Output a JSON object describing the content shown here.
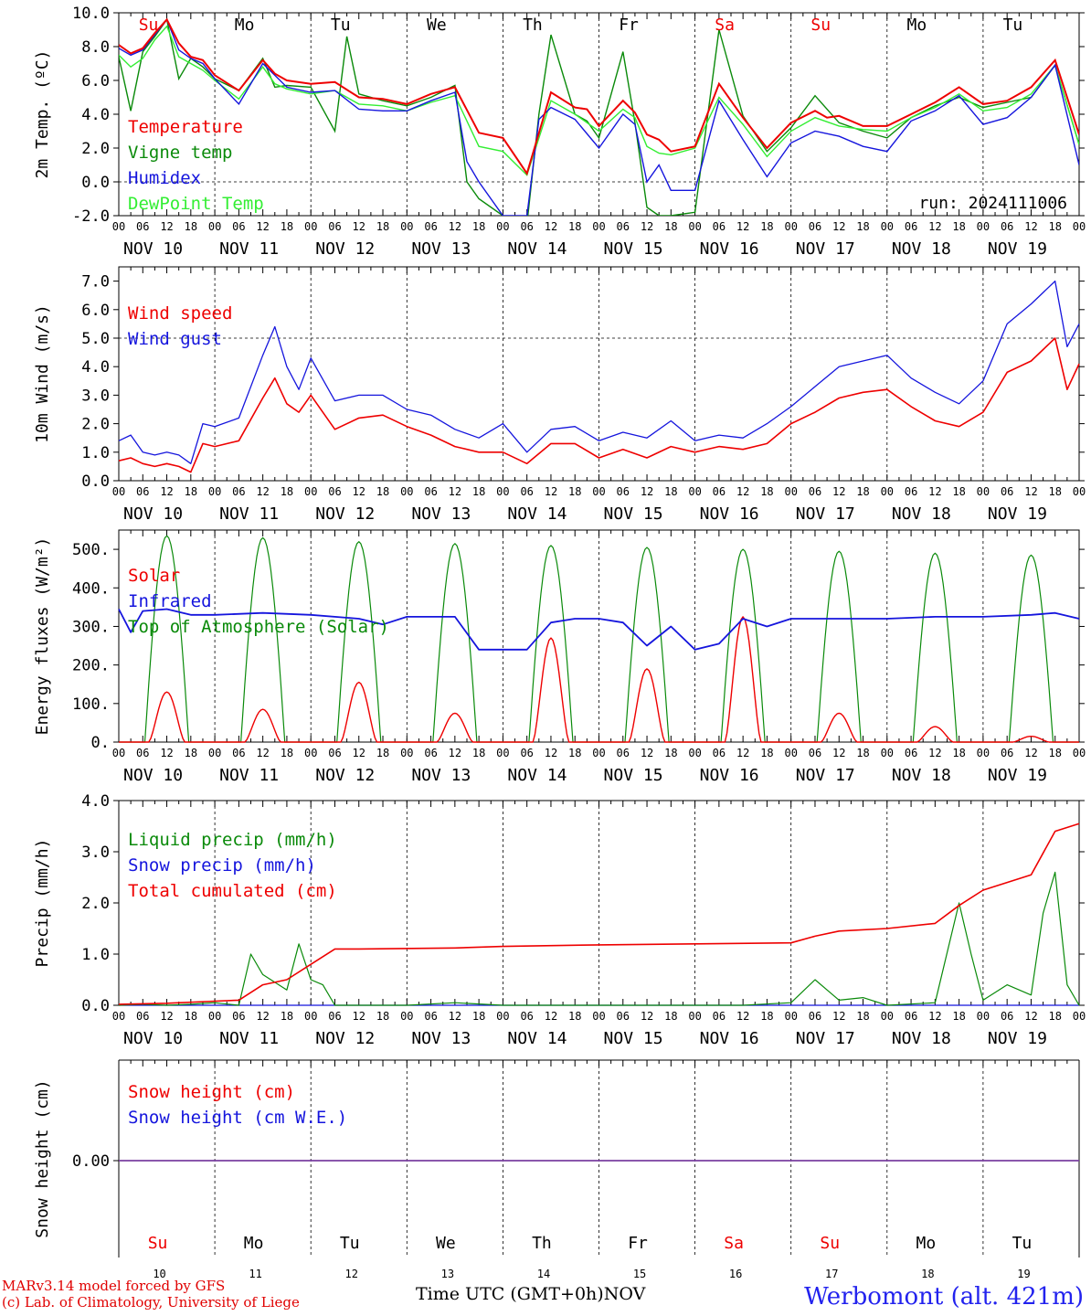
{
  "run_label": "run: 2024111006",
  "credits": {
    "line1": "MARv3.14 model forced by GFS",
    "line2": "(c) Lab. of Climatology, University of Liege"
  },
  "station": "Werbomont (alt. 421m)",
  "xaxis_title": "Time UTC (GMT+0h)",
  "xaxis_month": "NOV",
  "colors": {
    "red": "#ee0000",
    "green": "#0a8a0a",
    "blue": "#1515dd",
    "lightgreen": "#33ee33",
    "purple": "#7a3fa0"
  },
  "day_names": [
    "Su",
    "Mo",
    "Tu",
    "We",
    "Th",
    "Fr",
    "Sa",
    "Su",
    "Mo",
    "Tu"
  ],
  "day_name_colors": [
    "red",
    "black",
    "black",
    "black",
    "black",
    "black",
    "red",
    "red",
    "black",
    "black"
  ],
  "date_labels": [
    "NOV 10",
    "NOV 11",
    "NOV 12",
    "NOV 13",
    "NOV 14",
    "NOV 15",
    "NOV 16",
    "NOV 17",
    "NOV 18",
    "NOV 19"
  ],
  "day_numbers": [
    "10",
    "11",
    "12",
    "13",
    "14",
    "15",
    "16",
    "17",
    "18",
    "19"
  ],
  "hour_ticks": [
    "00",
    "06",
    "12",
    "18"
  ],
  "chart_data": [
    {
      "type": "line",
      "ylabel": "2m Temp. (ºC)",
      "ylim": [
        -2,
        10
      ],
      "yticks": [
        "-2.0",
        "0.0",
        "2.0",
        "4.0",
        "6.0",
        "8.0",
        "10.0"
      ],
      "x_unit": "hours since NOV 10 00 UTC",
      "series": [
        {
          "name": "Temperature",
          "color": "red",
          "x": [
            0,
            3,
            6,
            9,
            12,
            15,
            18,
            21,
            24,
            30,
            36,
            39,
            42,
            48,
            54,
            60,
            66,
            72,
            78,
            84,
            90,
            96,
            102,
            108,
            114,
            117,
            120,
            126,
            129,
            132,
            135,
            138,
            144,
            150,
            156,
            162,
            168,
            174,
            177,
            180,
            186,
            192,
            198,
            204,
            210,
            216,
            222,
            228,
            234,
            240
          ],
          "y": [
            8.1,
            7.6,
            7.9,
            8.8,
            9.6,
            8.2,
            7.4,
            7.2,
            6.3,
            5.4,
            7.2,
            6.4,
            6.0,
            5.8,
            5.9,
            5.0,
            4.9,
            4.6,
            5.2,
            5.6,
            2.9,
            2.6,
            0.5,
            5.3,
            4.4,
            4.3,
            3.3,
            4.8,
            4.1,
            2.8,
            2.5,
            1.8,
            2.1,
            5.8,
            3.8,
            2.0,
            3.5,
            4.2,
            3.8,
            3.9,
            3.3,
            3.3,
            4.0,
            4.7,
            5.6,
            4.6,
            4.8,
            5.6,
            7.2,
            2.8
          ]
        },
        {
          "name": "Vigne temp",
          "color": "green",
          "x": [
            0,
            3,
            6,
            9,
            12,
            15,
            18,
            21,
            24,
            30,
            36,
            39,
            42,
            48,
            54,
            57,
            60,
            66,
            72,
            78,
            84,
            87,
            90,
            96,
            102,
            105,
            108,
            114,
            117,
            120,
            126,
            129,
            132,
            135,
            138,
            144,
            150,
            156,
            162,
            168,
            174,
            180,
            186,
            192,
            198,
            204,
            210,
            216,
            222,
            228,
            234,
            240
          ],
          "y": [
            7.4,
            4.2,
            7.7,
            8.6,
            9.6,
            6.1,
            7.3,
            6.8,
            6.1,
            5.4,
            7.3,
            5.6,
            5.7,
            5.6,
            3.0,
            8.6,
            5.2,
            4.8,
            4.5,
            5.0,
            5.7,
            0.0,
            -1.0,
            -2.0,
            -2.5,
            4.0,
            8.7,
            4.0,
            3.6,
            2.6,
            7.7,
            3.5,
            -1.5,
            -2.0,
            -2.0,
            -1.8,
            9.0,
            3.9,
            1.8,
            3.2,
            5.1,
            3.5,
            3.0,
            2.6,
            3.8,
            4.5,
            5.0,
            4.4,
            4.7,
            5.0,
            6.9,
            2.2
          ]
        },
        {
          "name": "Humidex",
          "color": "blue",
          "x": [
            0,
            3,
            6,
            9,
            12,
            15,
            18,
            21,
            24,
            30,
            36,
            39,
            42,
            48,
            54,
            60,
            66,
            72,
            78,
            84,
            87,
            90,
            96,
            102,
            105,
            108,
            114,
            120,
            126,
            129,
            132,
            135,
            138,
            144,
            150,
            156,
            162,
            168,
            174,
            180,
            186,
            192,
            198,
            204,
            210,
            216,
            222,
            228,
            234,
            240
          ],
          "y": [
            7.9,
            7.5,
            7.8,
            8.7,
            9.6,
            7.8,
            7.3,
            7.0,
            6.1,
            4.6,
            7.0,
            6.3,
            5.6,
            5.3,
            5.4,
            4.3,
            4.2,
            4.2,
            4.8,
            5.3,
            1.2,
            0.0,
            -2.0,
            -2.0,
            3.7,
            4.4,
            3.7,
            2.0,
            4.0,
            3.4,
            0.0,
            1.0,
            -0.5,
            -0.5,
            4.8,
            2.5,
            0.3,
            2.3,
            3.0,
            2.7,
            2.1,
            1.8,
            3.6,
            4.2,
            5.1,
            3.4,
            3.8,
            5.0,
            6.9,
            1.0
          ]
        },
        {
          "name": "DewPoint Temp",
          "color": "lightgreen",
          "x": [
            0,
            3,
            6,
            9,
            12,
            15,
            18,
            21,
            24,
            30,
            36,
            39,
            42,
            48,
            54,
            60,
            66,
            72,
            78,
            84,
            90,
            96,
            102,
            108,
            114,
            120,
            126,
            129,
            132,
            135,
            138,
            144,
            150,
            156,
            162,
            168,
            174,
            180,
            186,
            192,
            198,
            204,
            210,
            216,
            222,
            228,
            234,
            240
          ],
          "y": [
            7.5,
            6.8,
            7.3,
            8.4,
            9.2,
            7.4,
            7.0,
            6.6,
            6.0,
            4.9,
            6.8,
            5.8,
            5.5,
            5.2,
            5.4,
            4.6,
            4.5,
            4.2,
            4.7,
            5.1,
            2.1,
            1.8,
            0.4,
            4.8,
            4.0,
            3.0,
            4.3,
            3.8,
            2.1,
            1.7,
            1.6,
            2.0,
            5.0,
            3.4,
            1.5,
            3.0,
            3.8,
            3.3,
            3.1,
            3.0,
            3.8,
            4.4,
            5.2,
            4.2,
            4.4,
            5.2,
            6.9,
            2.2
          ]
        }
      ]
    },
    {
      "type": "line",
      "ylabel": "10m Wind (m/s)",
      "ylim": [
        0,
        7.5
      ],
      "yticks": [
        "0.0",
        "1.0",
        "2.0",
        "3.0",
        "4.0",
        "5.0",
        "6.0",
        "7.0"
      ],
      "ref_line": 5.0,
      "series": [
        {
          "name": "Wind speed",
          "color": "red",
          "x": [
            0,
            3,
            6,
            9,
            12,
            15,
            18,
            21,
            24,
            30,
            36,
            39,
            42,
            45,
            48,
            54,
            60,
            66,
            72,
            78,
            84,
            90,
            96,
            102,
            108,
            114,
            120,
            126,
            132,
            138,
            144,
            150,
            156,
            162,
            168,
            174,
            180,
            186,
            192,
            198,
            204,
            210,
            216,
            222,
            228,
            234,
            237,
            240
          ],
          "y": [
            0.7,
            0.8,
            0.6,
            0.5,
            0.6,
            0.5,
            0.3,
            1.3,
            1.2,
            1.4,
            2.9,
            3.6,
            2.7,
            2.4,
            3.0,
            1.8,
            2.2,
            2.3,
            1.9,
            1.6,
            1.2,
            1.0,
            1.0,
            0.6,
            1.3,
            1.3,
            0.8,
            1.1,
            0.8,
            1.2,
            1.0,
            1.2,
            1.1,
            1.3,
            2.0,
            2.4,
            2.9,
            3.1,
            3.2,
            2.6,
            2.1,
            1.9,
            2.4,
            3.8,
            4.2,
            5.0,
            3.2,
            4.1
          ]
        },
        {
          "name": "Wind gust",
          "color": "blue",
          "x": [
            0,
            3,
            6,
            9,
            12,
            15,
            18,
            21,
            24,
            30,
            36,
            39,
            42,
            45,
            48,
            54,
            60,
            66,
            72,
            78,
            84,
            90,
            96,
            102,
            108,
            114,
            120,
            126,
            132,
            138,
            144,
            150,
            156,
            162,
            168,
            174,
            180,
            186,
            192,
            198,
            204,
            210,
            216,
            222,
            228,
            234,
            237,
            240
          ],
          "y": [
            1.4,
            1.6,
            1.0,
            0.9,
            1.0,
            0.9,
            0.6,
            2.0,
            1.9,
            2.2,
            4.4,
            5.4,
            4.0,
            3.2,
            4.3,
            2.8,
            3.0,
            3.0,
            2.5,
            2.3,
            1.8,
            1.5,
            2.0,
            1.0,
            1.8,
            1.9,
            1.4,
            1.7,
            1.5,
            2.1,
            1.4,
            1.6,
            1.5,
            2.0,
            2.6,
            3.3,
            4.0,
            4.2,
            4.4,
            3.6,
            3.1,
            2.7,
            3.5,
            5.5,
            6.2,
            7.0,
            4.7,
            5.5
          ]
        }
      ]
    },
    {
      "type": "line",
      "ylabel": "Energy fluxes (W/m²)",
      "ylim": [
        0,
        550
      ],
      "yticks": [
        "0.",
        "100.",
        "200.",
        "300.",
        "400.",
        "500."
      ],
      "series": [
        {
          "name": "Solar",
          "color": "red",
          "peaks": [
            130,
            85,
            155,
            75,
            270,
            190,
            325,
            75,
            40,
            15
          ]
        },
        {
          "name": "Infrared",
          "color": "blue",
          "x": [
            0,
            3,
            6,
            12,
            18,
            24,
            36,
            48,
            60,
            66,
            72,
            84,
            90,
            96,
            102,
            108,
            114,
            120,
            126,
            132,
            138,
            144,
            150,
            156,
            162,
            168,
            180,
            192,
            204,
            216,
            228,
            234,
            240
          ],
          "y": [
            345,
            285,
            340,
            345,
            330,
            330,
            335,
            330,
            320,
            305,
            325,
            325,
            240,
            240,
            240,
            310,
            320,
            320,
            310,
            250,
            300,
            240,
            255,
            320,
            300,
            320,
            320,
            320,
            325,
            325,
            330,
            335,
            320
          ]
        },
        {
          "name": "Top of Atmosphere (Solar)",
          "color": "green",
          "peaks": [
            535,
            530,
            520,
            515,
            510,
            505,
            500,
            495,
            490,
            485
          ]
        }
      ]
    },
    {
      "type": "line",
      "ylabel": "Precip (mm/h)",
      "ylim": [
        0,
        4.0
      ],
      "yticks": [
        "0.0",
        "1.0",
        "2.0",
        "3.0",
        "4.0"
      ],
      "series": [
        {
          "name": "Liquid precip (mm/h)",
          "color": "green",
          "x": [
            0,
            6,
            12,
            18,
            24,
            30,
            33,
            36,
            42,
            45,
            48,
            51,
            54,
            60,
            66,
            72,
            84,
            96,
            108,
            120,
            132,
            144,
            156,
            168,
            174,
            177,
            180,
            186,
            192,
            204,
            210,
            213,
            216,
            222,
            228,
            231,
            234,
            237,
            240
          ],
          "y": [
            0,
            0.02,
            0,
            0.02,
            0.05,
            0,
            1.0,
            0.6,
            0.3,
            1.2,
            0.5,
            0.4,
            0,
            0,
            0,
            0,
            0.05,
            0,
            0,
            0,
            0,
            0,
            0,
            0.05,
            0.5,
            0.3,
            0.1,
            0.15,
            0,
            0.05,
            2.0,
            1.0,
            0.1,
            0.4,
            0.2,
            1.8,
            2.6,
            0.4,
            0
          ]
        },
        {
          "name": "Snow precip (mm/h)",
          "color": "blue",
          "x": [
            0,
            240
          ],
          "y": [
            0,
            0
          ]
        },
        {
          "name": "Total cumulated (cm)",
          "color": "red",
          "x": [
            0,
            12,
            24,
            30,
            36,
            42,
            48,
            54,
            60,
            84,
            96,
            120,
            144,
            168,
            174,
            180,
            192,
            204,
            210,
            216,
            222,
            228,
            234,
            240
          ],
          "y": [
            0.02,
            0.04,
            0.08,
            0.1,
            0.4,
            0.5,
            0.8,
            1.1,
            1.1,
            1.12,
            1.15,
            1.18,
            1.2,
            1.22,
            1.35,
            1.45,
            1.5,
            1.6,
            1.95,
            2.25,
            2.4,
            2.55,
            3.4,
            3.55
          ]
        }
      ]
    },
    {
      "type": "line",
      "ylabel": "Snow height (cm)",
      "yticks": [
        "0.00"
      ],
      "series": [
        {
          "name": "Snow height (cm)",
          "color": "red",
          "x": [
            0,
            240
          ],
          "y": [
            0,
            0
          ]
        },
        {
          "name": "Snow height (cm W.E.)",
          "color": "blue",
          "x": [
            0,
            240
          ],
          "y": [
            0,
            0
          ]
        }
      ]
    }
  ]
}
